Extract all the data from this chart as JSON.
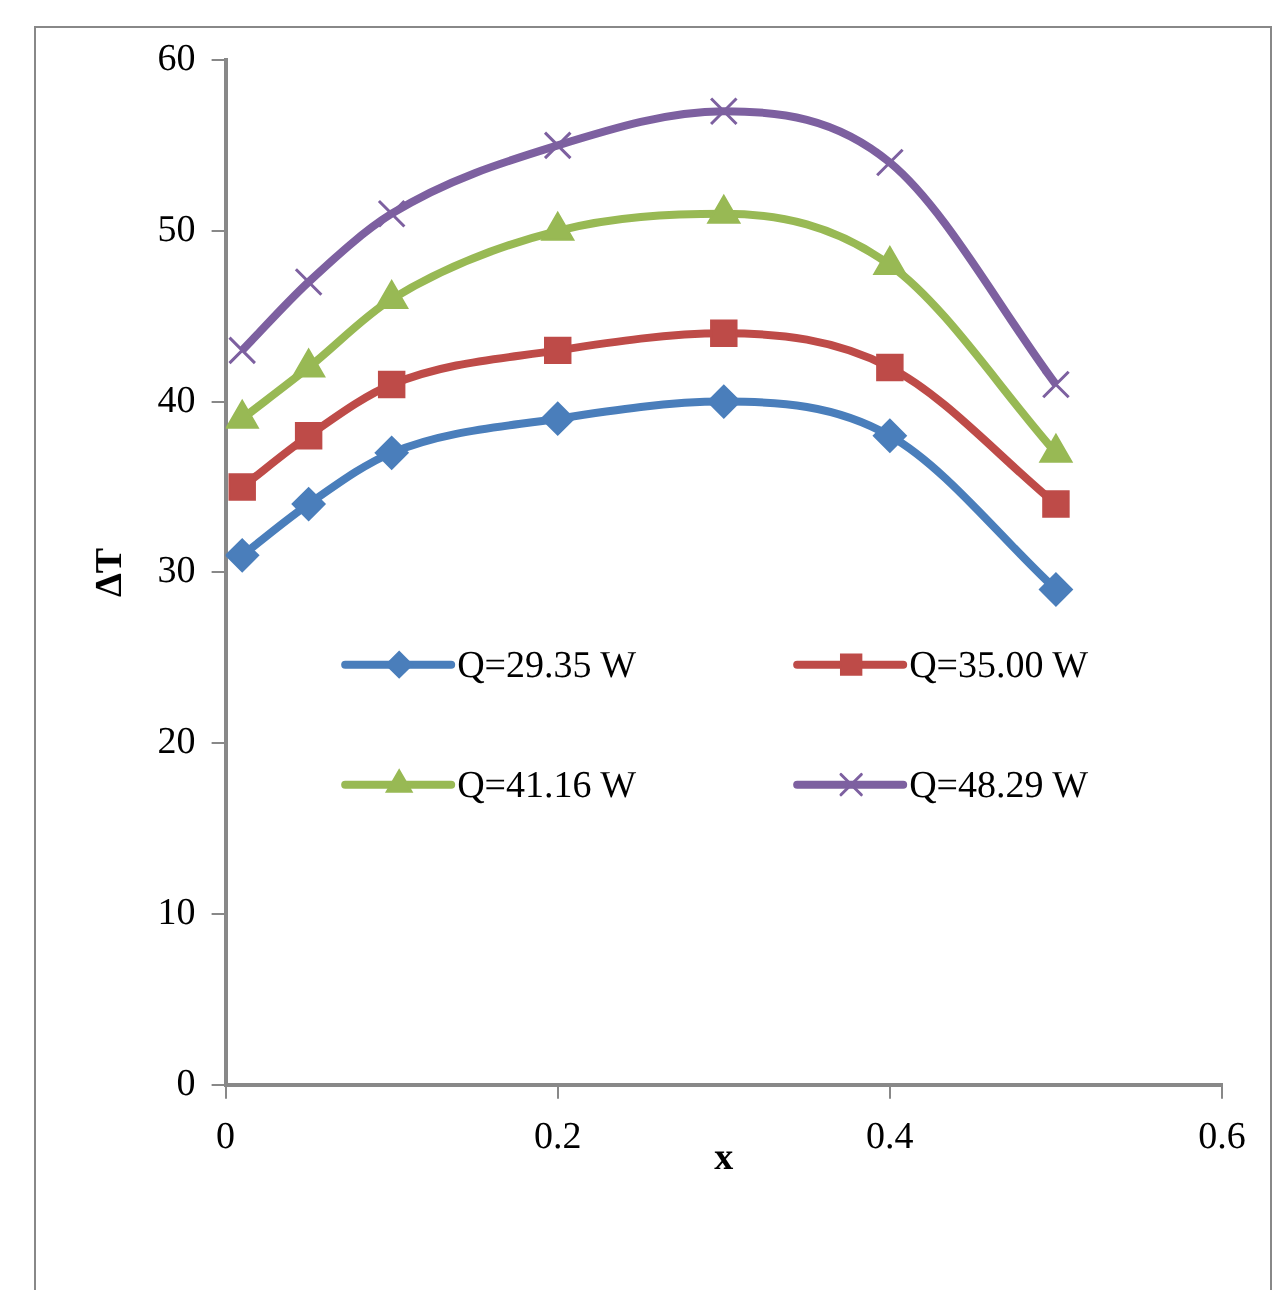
{
  "chart_data": {
    "type": "line",
    "xlabel": "x",
    "ylabel": "ΔT",
    "x": [
      0.01,
      0.05,
      0.1,
      0.2,
      0.3,
      0.4,
      0.5
    ],
    "series": [
      {
        "name": "Q=29.35 W",
        "color": "#4a7ebb",
        "marker": "diamond",
        "values": [
          31,
          34,
          37,
          39,
          40,
          38,
          29
        ]
      },
      {
        "name": "Q=35.00 W",
        "color": "#be4b48",
        "marker": "square",
        "values": [
          35,
          38,
          41,
          43,
          44,
          42,
          34
        ]
      },
      {
        "name": "Q=41.16 W",
        "color": "#98b954",
        "marker": "triangle",
        "values": [
          39,
          42,
          46,
          50,
          51,
          48,
          37
        ]
      },
      {
        "name": "Q=48.29 W",
        "color": "#7d60a0",
        "marker": "cross",
        "values": [
          43,
          47,
          51,
          55,
          57,
          54,
          41
        ]
      }
    ],
    "xlim": [
      0,
      0.6
    ],
    "xticks": [
      0,
      0.2,
      0.4,
      0.6
    ],
    "ylim": [
      0,
      60
    ],
    "yticks": [
      0,
      10,
      20,
      30,
      40,
      50,
      60
    ],
    "grid": false,
    "legend": "center"
  }
}
